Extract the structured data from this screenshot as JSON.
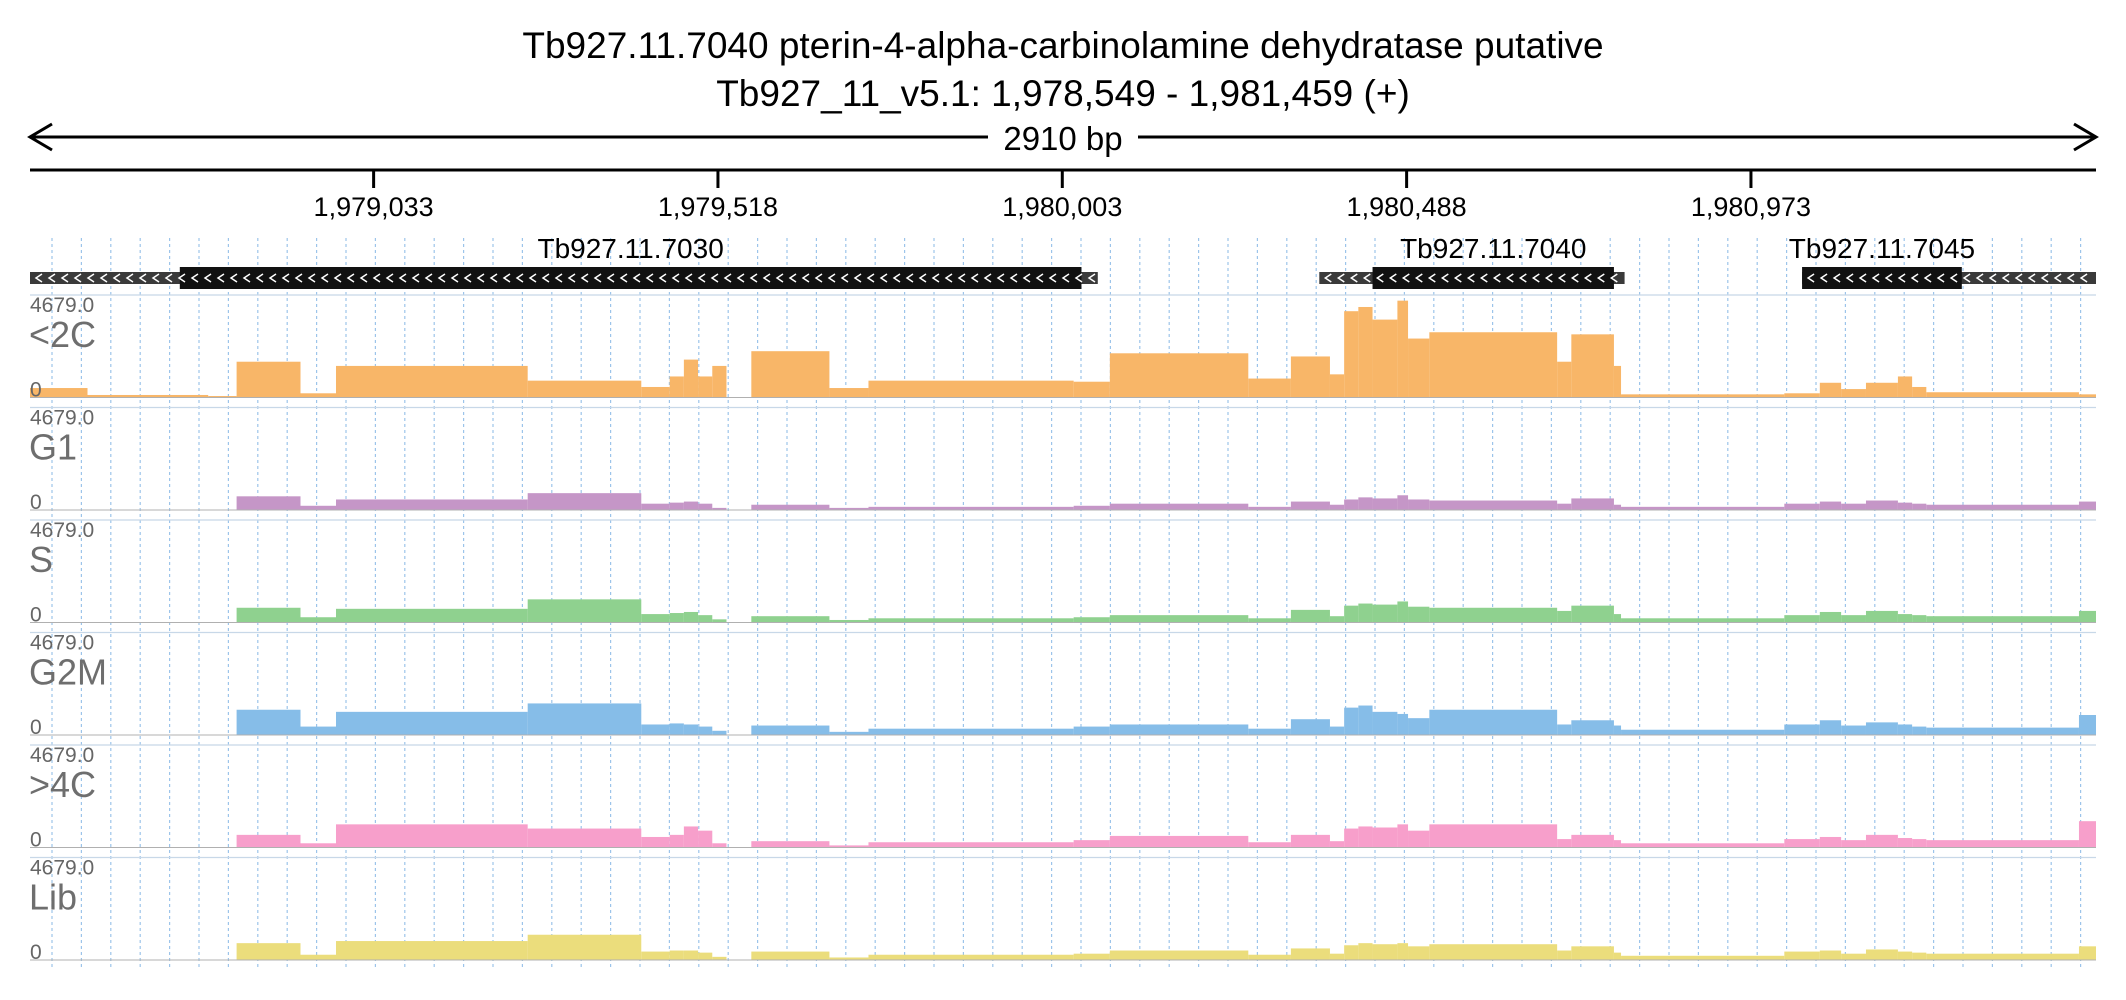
{
  "header": {
    "title_line1": "Tb927.11.7040  pterin-4-alpha-carbinolamine dehydratase  putative",
    "title_line2": "Tb927_11_v5.1: 1,978,549 - 1,981,459 (+)",
    "span_label": "2910 bp"
  },
  "ruler": {
    "start": 1978549,
    "end": 1981459,
    "ticks": [
      {
        "pos": 1979033,
        "label": "1,979,033"
      },
      {
        "pos": 1979518,
        "label": "1,979,518"
      },
      {
        "pos": 1980003,
        "label": "1,980,003"
      },
      {
        "pos": 1980488,
        "label": "1,980,488"
      },
      {
        "pos": 1980973,
        "label": "1,980,973"
      }
    ]
  },
  "genes": [
    {
      "name": "Tb927.11.7030",
      "strand": "-",
      "transcript": [
        1978549,
        1980053
      ],
      "cds": [
        1978760,
        1980030
      ]
    },
    {
      "name": "Tb927.11.7040",
      "strand": "-",
      "transcript": [
        1980365,
        1980795
      ],
      "cds": [
        1980440,
        1980780
      ]
    },
    {
      "name": "Tb927.11.7045",
      "strand": "-",
      "transcript": [
        1981045,
        1981459
      ],
      "cds": [
        1981045,
        1981270
      ]
    }
  ],
  "chart_data": {
    "type": "area",
    "x_range": [
      1978549,
      1981459
    ],
    "y_range": [
      0,
      4679.0
    ],
    "y_max_label": "4679.0",
    "y_min_label": "0",
    "segment_boundaries": [
      1978549,
      1978630,
      1978800,
      1978840,
      1978930,
      1978980,
      1979250,
      1979410,
      1979450,
      1979470,
      1979490,
      1979510,
      1979530,
      1979565,
      1979675,
      1979730,
      1980019,
      1980070,
      1980265,
      1980325,
      1980380,
      1980400,
      1980420,
      1980440,
      1980475,
      1980490,
      1980520,
      1980700,
      1980720,
      1980780,
      1980790,
      1981020,
      1981070,
      1981100,
      1981135,
      1981180,
      1981200,
      1981220,
      1981435,
      1981459
    ],
    "series": [
      {
        "name": "<2C",
        "color": "#f8b668",
        "values": [
          450,
          120,
          70,
          1700,
          200,
          1500,
          800,
          500,
          1000,
          1800,
          1000,
          1500,
          0,
          2200,
          450,
          800,
          750,
          2100,
          900,
          1950,
          1100,
          4100,
          4300,
          3700,
          4600,
          2800,
          3100,
          1700,
          3000,
          1500,
          150,
          200,
          700,
          400,
          700,
          1000,
          500,
          250,
          150
        ]
      },
      {
        "name": "G1",
        "color": "#c596c7",
        "values": [
          20,
          10,
          10,
          650,
          200,
          500,
          800,
          300,
          350,
          400,
          300,
          100,
          0,
          250,
          100,
          150,
          200,
          300,
          150,
          400,
          250,
          500,
          600,
          550,
          700,
          500,
          450,
          300,
          550,
          250,
          150,
          300,
          400,
          300,
          450,
          350,
          300,
          250,
          400
        ]
      },
      {
        "name": "S",
        "color": "#8fd18f",
        "values": [
          20,
          10,
          10,
          700,
          250,
          650,
          1100,
          400,
          450,
          500,
          350,
          150,
          0,
          300,
          120,
          200,
          250,
          350,
          200,
          600,
          300,
          800,
          900,
          850,
          1000,
          750,
          700,
          550,
          800,
          400,
          200,
          350,
          500,
          350,
          550,
          400,
          350,
          300,
          550
        ]
      },
      {
        "name": "G2M",
        "color": "#86bde8",
        "values": [
          20,
          10,
          10,
          1200,
          400,
          1100,
          1500,
          500,
          550,
          500,
          400,
          200,
          0,
          450,
          150,
          300,
          400,
          500,
          300,
          750,
          400,
          1300,
          1400,
          1100,
          1000,
          800,
          1200,
          500,
          700,
          450,
          250,
          500,
          700,
          450,
          600,
          500,
          400,
          350,
          950
        ]
      },
      {
        "name": ">4C",
        "color": "#f79fcb",
        "values": [
          20,
          10,
          10,
          600,
          200,
          1100,
          900,
          500,
          600,
          1000,
          800,
          200,
          0,
          300,
          100,
          250,
          350,
          550,
          250,
          600,
          300,
          900,
          1000,
          950,
          1100,
          800,
          1100,
          400,
          600,
          350,
          200,
          400,
          500,
          350,
          600,
          450,
          400,
          350,
          1250
        ]
      },
      {
        "name": "Lib",
        "color": "#ebdd7c",
        "values": [
          20,
          10,
          10,
          800,
          250,
          900,
          1200,
          400,
          450,
          450,
          350,
          150,
          0,
          400,
          120,
          250,
          300,
          450,
          250,
          550,
          300,
          700,
          800,
          750,
          800,
          650,
          750,
          450,
          650,
          350,
          200,
          400,
          450,
          300,
          500,
          400,
          350,
          300,
          650
        ]
      }
    ]
  }
}
